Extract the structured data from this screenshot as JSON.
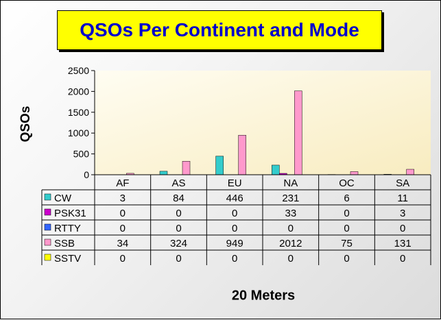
{
  "chart_data": {
    "type": "bar",
    "title": "QSOs Per Continent and Mode",
    "xlabel": "20 Meters",
    "ylabel": "QSOs",
    "ylim": [
      0,
      2500
    ],
    "yticks": [
      "0",
      "500",
      "1000",
      "1500",
      "2000",
      "2500"
    ],
    "ytick_values": [
      0,
      500,
      1000,
      1500,
      2000,
      2500
    ],
    "categories": [
      "AF",
      "AS",
      "EU",
      "NA",
      "OC",
      "SA"
    ],
    "series": [
      {
        "name": "CW",
        "color": "#33cccc",
        "values": [
          3,
          84,
          446,
          231,
          6,
          11
        ],
        "labels": [
          "3",
          "84",
          "446",
          "231",
          "6",
          "11"
        ]
      },
      {
        "name": "PSK31",
        "color": "#cc00cc",
        "values": [
          0,
          0,
          0,
          33,
          0,
          3
        ],
        "labels": [
          "0",
          "0",
          "0",
          "33",
          "0",
          "3"
        ]
      },
      {
        "name": "RTTY",
        "color": "#3366ff",
        "values": [
          0,
          0,
          0,
          0,
          0,
          0
        ],
        "labels": [
          "0",
          "0",
          "0",
          "0",
          "0",
          "0"
        ]
      },
      {
        "name": "SSB",
        "color": "#ff99cc",
        "values": [
          34,
          324,
          949,
          2012,
          75,
          131
        ],
        "labels": [
          "34",
          "324",
          "949",
          "2012",
          "75",
          "131"
        ]
      },
      {
        "name": "SSTV",
        "color": "#ffff00",
        "values": [
          0,
          0,
          0,
          0,
          0,
          0
        ],
        "labels": [
          "0",
          "0",
          "0",
          "0",
          "0",
          "0"
        ]
      }
    ],
    "grid": false,
    "legend": "data-table",
    "plot_background": "#fff8d8"
  }
}
